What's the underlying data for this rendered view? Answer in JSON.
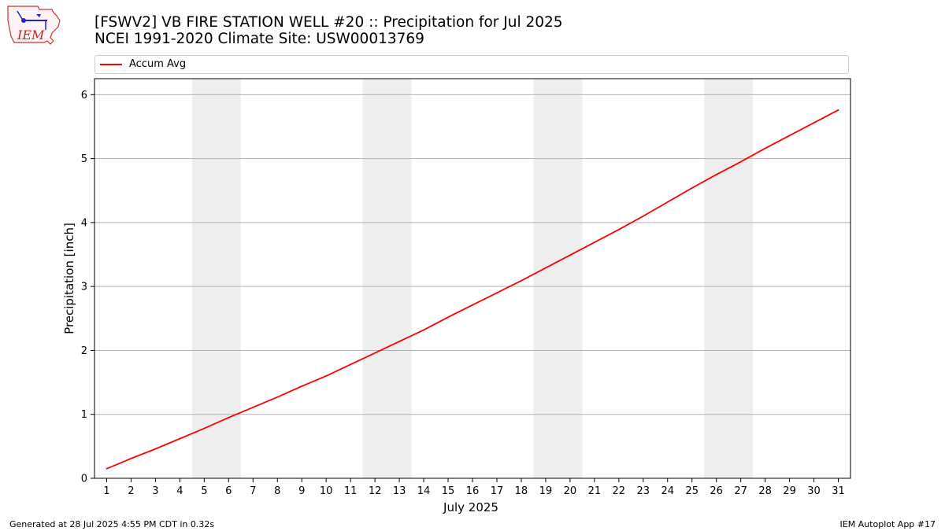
{
  "logo": {
    "text": "IEM"
  },
  "title": {
    "line1": "[FSWV2] VB FIRE STATION WELL #20 :: Precipitation for Jul 2025",
    "line2": "NCEI 1991-2020 Climate Site: USW00013769"
  },
  "footer": {
    "generated": "Generated at 28 Jul 2025 4:55 PM CDT in 0.32s",
    "app": "IEM Autoplot App #17"
  },
  "colors": {
    "line": "#ff0000",
    "weekend_band": "#eeeeee",
    "grid": "#b0b0b0"
  },
  "chart_data": {
    "type": "line",
    "xlabel": "July 2025",
    "ylabel": "Precipitation [inch]",
    "xlim": [
      0.5,
      31.5
    ],
    "ylim": [
      0,
      6.25
    ],
    "x_ticks": [
      1,
      2,
      3,
      4,
      5,
      6,
      7,
      8,
      9,
      10,
      11,
      12,
      13,
      14,
      15,
      16,
      17,
      18,
      19,
      20,
      21,
      22,
      23,
      24,
      25,
      26,
      27,
      28,
      29,
      30,
      31
    ],
    "y_ticks": [
      0,
      1,
      2,
      3,
      4,
      5,
      6
    ],
    "grid": "horizontal",
    "legend": {
      "placement": "top",
      "entries": [
        "Accum Avg"
      ]
    },
    "weekend_bands": [
      [
        4.5,
        6.5
      ],
      [
        11.5,
        13.5
      ],
      [
        18.5,
        20.5
      ],
      [
        25.5,
        27.5
      ]
    ],
    "series": [
      {
        "name": "Accum Avg",
        "x": [
          1,
          2,
          3,
          4,
          5,
          6,
          7,
          8,
          9,
          10,
          11,
          12,
          13,
          14,
          15,
          16,
          17,
          18,
          19,
          20,
          21,
          22,
          23,
          24,
          25,
          26,
          27,
          28,
          29,
          30,
          31
        ],
        "values": [
          0.15,
          0.31,
          0.46,
          0.62,
          0.78,
          0.95,
          1.11,
          1.27,
          1.44,
          1.6,
          1.78,
          1.96,
          2.14,
          2.32,
          2.52,
          2.71,
          2.9,
          3.09,
          3.29,
          3.49,
          3.69,
          3.89,
          4.1,
          4.32,
          4.54,
          4.75,
          4.95,
          5.16,
          5.36,
          5.56,
          5.76
        ]
      }
    ]
  }
}
